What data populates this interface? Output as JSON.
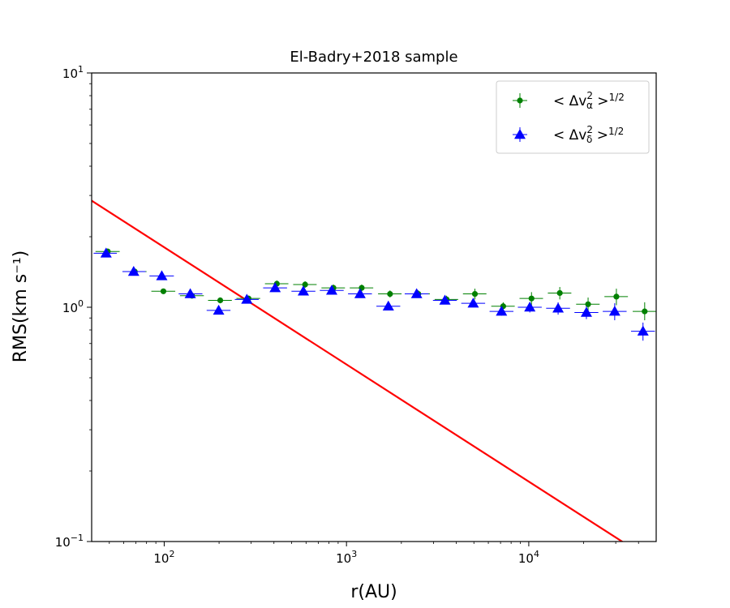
{
  "chart_data": {
    "type": "scatter",
    "title": "El-Badry+2018 sample",
    "xlabel": "r(AU)",
    "ylabel": "RMS(km s⁻¹)",
    "xscale": "log",
    "yscale": "log",
    "xlim": [
      40,
      50000
    ],
    "ylim": [
      0.1,
      10
    ],
    "x_ticks": [
      {
        "value": 100,
        "base": "10",
        "exp": "2"
      },
      {
        "value": 1000,
        "base": "10",
        "exp": "3"
      },
      {
        "value": 10000,
        "base": "10",
        "exp": "4"
      }
    ],
    "y_ticks": [
      {
        "value": 0.1,
        "base": "10",
        "exp": "−1"
      },
      {
        "value": 1,
        "base": "10",
        "exp": "0"
      },
      {
        "value": 10,
        "base": "10",
        "exp": "1"
      }
    ],
    "legend": {
      "position": "top-right",
      "entries": [
        {
          "label": "< Δvα² >¹ᐟ²",
          "main": "< Δv",
          "sup": "2",
          "sub": "α",
          "tail": " >",
          "tailsup": "1/2"
        },
        {
          "label": "< Δvδ² >¹ᐟ²",
          "main": "< Δv",
          "sup": "2",
          "sub": "δ",
          "tail": " >",
          "tailsup": "1/2"
        }
      ]
    },
    "colors": {
      "alpha": "#008000",
      "delta": "#0000ff",
      "line": "#ff0000"
    },
    "series": [
      {
        "key": "alpha",
        "marker": "circle",
        "points": [
          {
            "x": 49,
            "y": 1.73,
            "xlo": 42,
            "xhi": 57,
            "ylo": 1.68,
            "yhi": 1.78
          },
          {
            "x": 69,
            "y": 1.42,
            "xlo": 60,
            "xhi": 80,
            "ylo": 1.38,
            "yhi": 1.46
          },
          {
            "x": 99,
            "y": 1.17,
            "xlo": 85,
            "xhi": 115,
            "ylo": 1.14,
            "yhi": 1.2
          },
          {
            "x": 142,
            "y": 1.12,
            "xlo": 122,
            "xhi": 165,
            "ylo": 1.09,
            "yhi": 1.15
          },
          {
            "x": 203,
            "y": 1.07,
            "xlo": 174,
            "xhi": 235,
            "ylo": 1.04,
            "yhi": 1.1
          },
          {
            "x": 290,
            "y": 1.09,
            "xlo": 249,
            "xhi": 336,
            "ylo": 1.06,
            "yhi": 1.12
          },
          {
            "x": 415,
            "y": 1.26,
            "xlo": 357,
            "xhi": 480,
            "ylo": 1.22,
            "yhi": 1.3
          },
          {
            "x": 593,
            "y": 1.25,
            "xlo": 510,
            "xhi": 686,
            "ylo": 1.21,
            "yhi": 1.29
          },
          {
            "x": 848,
            "y": 1.21,
            "xlo": 729,
            "xhi": 981,
            "ylo": 1.17,
            "yhi": 1.25
          },
          {
            "x": 1212,
            "y": 1.21,
            "xlo": 1042,
            "xhi": 1402,
            "ylo": 1.17,
            "yhi": 1.25
          },
          {
            "x": 1733,
            "y": 1.14,
            "xlo": 1490,
            "xhi": 2005,
            "ylo": 1.1,
            "yhi": 1.18
          },
          {
            "x": 2478,
            "y": 1.14,
            "xlo": 2130,
            "xhi": 2866,
            "ylo": 1.1,
            "yhi": 1.18
          },
          {
            "x": 3542,
            "y": 1.08,
            "xlo": 3045,
            "xhi": 4098,
            "ylo": 1.04,
            "yhi": 1.12
          },
          {
            "x": 5064,
            "y": 1.14,
            "xlo": 4354,
            "xhi": 5858,
            "ylo": 1.08,
            "yhi": 1.2
          },
          {
            "x": 7240,
            "y": 1.01,
            "xlo": 6225,
            "xhi": 8376,
            "ylo": 0.97,
            "yhi": 1.05
          },
          {
            "x": 10350,
            "y": 1.09,
            "xlo": 8898,
            "xhi": 11974,
            "ylo": 1.02,
            "yhi": 1.16
          },
          {
            "x": 14797,
            "y": 1.15,
            "xlo": 12722,
            "xhi": 17118,
            "ylo": 1.08,
            "yhi": 1.22
          },
          {
            "x": 21154,
            "y": 1.03,
            "xlo": 18187,
            "xhi": 24472,
            "ylo": 0.96,
            "yhi": 1.1
          },
          {
            "x": 30242,
            "y": 1.11,
            "xlo": 26000,
            "xhi": 34985,
            "ylo": 1.02,
            "yhi": 1.2
          },
          {
            "x": 43234,
            "y": 0.96,
            "xlo": 37170,
            "xhi": 50000,
            "ylo": 0.88,
            "yhi": 1.05
          }
        ]
      },
      {
        "key": "delta",
        "marker": "triangle",
        "points": [
          {
            "x": 48,
            "y": 1.7,
            "xlo": 41,
            "xhi": 55,
            "ylo": 1.65,
            "yhi": 1.75
          },
          {
            "x": 68,
            "y": 1.42,
            "xlo": 59,
            "xhi": 79,
            "ylo": 1.38,
            "yhi": 1.46
          },
          {
            "x": 97,
            "y": 1.36,
            "xlo": 83,
            "xhi": 113,
            "ylo": 1.32,
            "yhi": 1.4
          },
          {
            "x": 139,
            "y": 1.14,
            "xlo": 120,
            "xhi": 162,
            "ylo": 1.11,
            "yhi": 1.17
          },
          {
            "x": 199,
            "y": 0.97,
            "xlo": 171,
            "xhi": 231,
            "ylo": 0.94,
            "yhi": 1.0
          },
          {
            "x": 284,
            "y": 1.08,
            "xlo": 244,
            "xhi": 330,
            "ylo": 1.05,
            "yhi": 1.11
          },
          {
            "x": 406,
            "y": 1.21,
            "xlo": 349,
            "xhi": 472,
            "ylo": 1.17,
            "yhi": 1.25
          },
          {
            "x": 580,
            "y": 1.17,
            "xlo": 499,
            "xhi": 675,
            "ylo": 1.13,
            "yhi": 1.21
          },
          {
            "x": 830,
            "y": 1.18,
            "xlo": 714,
            "xhi": 965,
            "ylo": 1.14,
            "yhi": 1.22
          },
          {
            "x": 1187,
            "y": 1.14,
            "xlo": 1020,
            "xhi": 1379,
            "ylo": 1.1,
            "yhi": 1.18
          },
          {
            "x": 1697,
            "y": 1.01,
            "xlo": 1459,
            "xhi": 1972,
            "ylo": 0.98,
            "yhi": 1.04
          },
          {
            "x": 2426,
            "y": 1.14,
            "xlo": 2086,
            "xhi": 2820,
            "ylo": 1.1,
            "yhi": 1.18
          },
          {
            "x": 3468,
            "y": 1.07,
            "xlo": 2981,
            "xhi": 4031,
            "ylo": 1.03,
            "yhi": 1.11
          },
          {
            "x": 4958,
            "y": 1.04,
            "xlo": 4262,
            "xhi": 5762,
            "ylo": 1.0,
            "yhi": 1.08
          },
          {
            "x": 7088,
            "y": 0.96,
            "xlo": 6094,
            "xhi": 8238,
            "ylo": 0.92,
            "yhi": 1.0
          },
          {
            "x": 10133,
            "y": 1.0,
            "xlo": 8712,
            "xhi": 11777,
            "ylo": 0.95,
            "yhi": 1.05
          },
          {
            "x": 14486,
            "y": 0.99,
            "xlo": 12455,
            "xhi": 16837,
            "ylo": 0.93,
            "yhi": 1.05
          },
          {
            "x": 20710,
            "y": 0.95,
            "xlo": 17806,
            "xhi": 24071,
            "ylo": 0.89,
            "yhi": 1.01
          },
          {
            "x": 29607,
            "y": 0.96,
            "xlo": 25455,
            "xhi": 34411,
            "ylo": 0.88,
            "yhi": 1.04
          },
          {
            "x": 42326,
            "y": 0.79,
            "xlo": 36390,
            "xhi": 49195,
            "ylo": 0.72,
            "yhi": 0.86
          }
        ]
      }
    ],
    "line": {
      "color": "#ff0000",
      "points": [
        {
          "x": 40,
          "y": 2.85
        },
        {
          "x": 50000,
          "y": 0.0806
        }
      ]
    }
  }
}
